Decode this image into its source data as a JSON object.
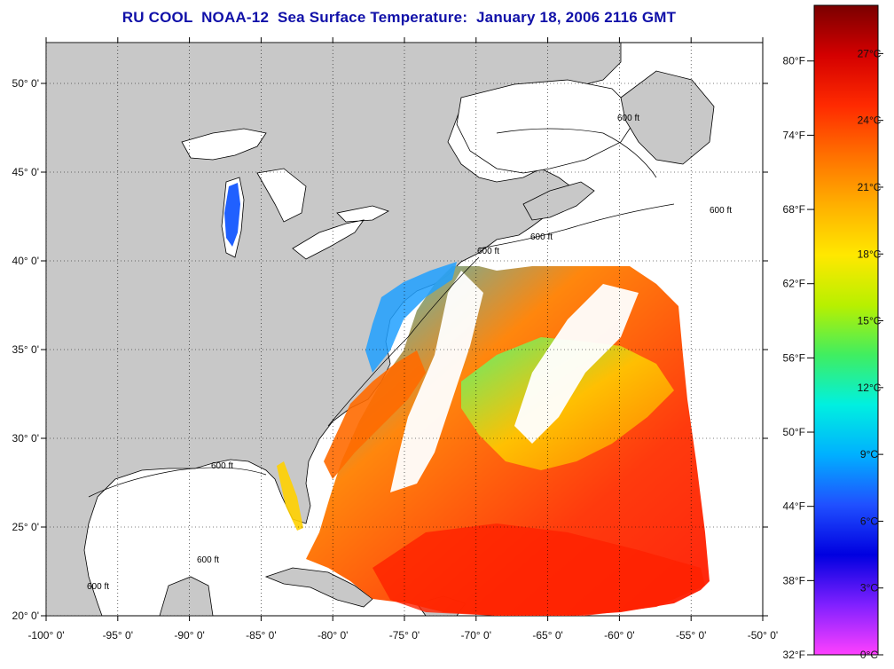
{
  "title": "RU COOL  NOAA-12  Sea Surface Temperature:  January 18, 2006 2116 GMT",
  "map": {
    "lon_range": [
      -100,
      -50
    ],
    "lat_range": [
      20,
      52.3
    ],
    "lon_ticks": [
      "-100° 0'",
      "-95° 0'",
      "-90° 0'",
      "-85° 0'",
      "-80° 0'",
      "-75° 0'",
      "-70° 0'",
      "-65° 0'",
      "-60° 0'",
      "-55° 0'",
      "-50° 0'"
    ],
    "lat_ticks": [
      "20° 0'",
      "25° 0'",
      "30° 0'",
      "35° 0'",
      "40° 0'",
      "45° 0'",
      "50° 0'"
    ],
    "contour_labels": [
      "600 ft",
      "600 ft",
      "600 ft",
      "600 ft",
      "600 ft",
      "600 ft",
      "600 ft"
    ],
    "colors": {
      "land": "#c8c8c8",
      "water_no_data": "#ffffff",
      "grid": "#000000"
    }
  },
  "colorbar": {
    "fahrenheit": [
      "80°F",
      "74°F",
      "68°F",
      "62°F",
      "56°F",
      "50°F",
      "44°F",
      "38°F",
      "32°F"
    ],
    "celsius": [
      "27°C",
      "24°C",
      "21°C",
      "18°C",
      "15°C",
      "12°C",
      "9°C",
      "6°C",
      "3°C",
      "0°C"
    ],
    "gradient": [
      "#7a0000",
      "#d40000",
      "#ff2a00",
      "#ff7000",
      "#ffb000",
      "#ffe800",
      "#b8f000",
      "#40ee60",
      "#00f0e0",
      "#00b0ff",
      "#2050ff",
      "#0000e0",
      "#8020ff",
      "#ff40ff"
    ]
  }
}
